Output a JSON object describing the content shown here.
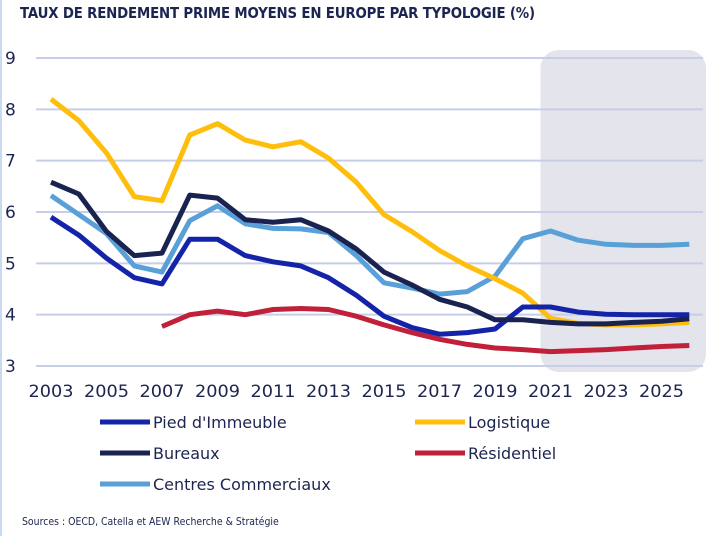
{
  "chart_data": {
    "type": "line",
    "title": "TAUX DE RENDEMENT PRIME MOYENS EN EUROPE PAR TYPOLOGIE (%)",
    "xlabel": "",
    "ylabel": "",
    "ylim": [
      3,
      9
    ],
    "yticks": [
      "3",
      "4",
      "5",
      "6",
      "7",
      "8",
      "9"
    ],
    "xlim": [
      2003,
      2026
    ],
    "xticks": [
      "2003",
      "2005",
      "2007",
      "2009",
      "2011",
      "2013",
      "2015",
      "2017",
      "2019",
      "2021",
      "2023",
      "2025"
    ],
    "grid": true,
    "forecast_shading": {
      "from_year": 2021,
      "to_year": 2026,
      "color": "#e3e4ec"
    },
    "legend_position": "bottom",
    "x": [
      2003,
      2004,
      2005,
      2006,
      2007,
      2008,
      2009,
      2010,
      2011,
      2012,
      2013,
      2014,
      2015,
      2016,
      2017,
      2018,
      2019,
      2020,
      2021,
      2022,
      2023,
      2024,
      2025,
      2026
    ],
    "series": [
      {
        "name": "Pied d'Immeuble",
        "color": "#1424a8",
        "values": [
          5.9,
          5.55,
          5.1,
          4.72,
          4.6,
          5.47,
          5.47,
          5.15,
          5.03,
          4.95,
          4.72,
          4.38,
          3.97,
          3.75,
          3.62,
          3.65,
          3.72,
          4.15,
          4.15,
          4.05,
          4.01,
          4.0,
          4.0,
          4.0
        ]
      },
      {
        "name": "Logistique",
        "color": "#ffbe0b",
        "values": [
          8.2,
          7.78,
          7.15,
          6.3,
          6.22,
          7.5,
          7.72,
          7.4,
          7.27,
          7.37,
          7.05,
          6.58,
          5.95,
          5.62,
          5.25,
          4.95,
          4.7,
          4.42,
          3.93,
          3.83,
          3.8,
          3.8,
          3.82,
          3.85
        ]
      },
      {
        "name": "Bureaux",
        "color": "#1a2350",
        "values": [
          6.58,
          6.35,
          5.62,
          5.15,
          5.2,
          6.33,
          6.27,
          5.85,
          5.8,
          5.85,
          5.63,
          5.28,
          4.83,
          4.58,
          4.3,
          4.15,
          3.9,
          3.9,
          3.85,
          3.82,
          3.82,
          3.85,
          3.87,
          3.92
        ]
      },
      {
        "name": "Résidentiel",
        "color": "#c0203a",
        "values": [
          null,
          null,
          null,
          null,
          3.77,
          4.0,
          4.07,
          4.0,
          4.1,
          4.12,
          4.1,
          3.97,
          3.8,
          3.65,
          3.52,
          3.42,
          3.35,
          3.32,
          3.28,
          3.3,
          3.32,
          3.35,
          3.38,
          3.4
        ]
      },
      {
        "name": "Centres Commerciaux",
        "color": "#5aa0d8",
        "values": [
          6.32,
          5.95,
          5.58,
          4.95,
          4.83,
          5.83,
          6.12,
          5.77,
          5.68,
          5.67,
          5.6,
          5.15,
          4.62,
          4.52,
          4.4,
          4.45,
          4.75,
          5.48,
          5.63,
          5.45,
          5.37,
          5.35,
          5.35,
          5.37
        ]
      }
    ],
    "legend": [
      {
        "label": "Pied d'Immeuble",
        "series_index": 0
      },
      {
        "label": "Logistique",
        "series_index": 1
      },
      {
        "label": "Bureaux",
        "series_index": 2
      },
      {
        "label": "Résidentiel",
        "series_index": 3
      },
      {
        "label": "Centres Commerciaux",
        "series_index": 4
      }
    ]
  },
  "source_note": "Sources : OECD, Catella et AEW Recherche & Stratégie"
}
